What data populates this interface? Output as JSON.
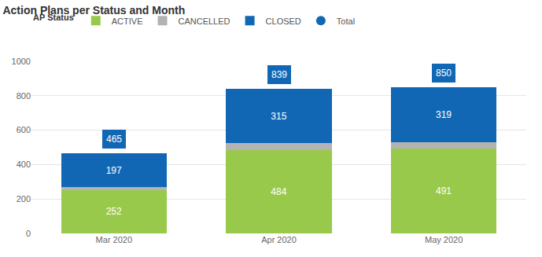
{
  "chart_data": {
    "type": "bar",
    "title": "Action Plans per Status and Month",
    "legend_title": "AP Status",
    "categories": [
      "Mar 2020",
      "Apr 2020",
      "May 2020"
    ],
    "stacked": true,
    "series": [
      {
        "name": "ACTIVE",
        "color": "#99c94b",
        "values": [
          252,
          484,
          491
        ],
        "data_labels": true
      },
      {
        "name": "CANCELLED",
        "color": "#b3b3b3",
        "values": [
          16,
          40,
          40
        ],
        "data_labels": false
      },
      {
        "name": "CLOSED",
        "color": "#1267b4",
        "values": [
          197,
          315,
          319
        ],
        "data_labels": true
      },
      {
        "name": "Total",
        "color": "#1267b4",
        "values": [
          465,
          839,
          850
        ],
        "type": "total",
        "data_labels": true
      }
    ],
    "ylim": [
      0,
      1000
    ],
    "yticks": [
      0,
      200,
      400,
      600,
      800,
      1000
    ],
    "grid": true,
    "legend": "top-left"
  }
}
